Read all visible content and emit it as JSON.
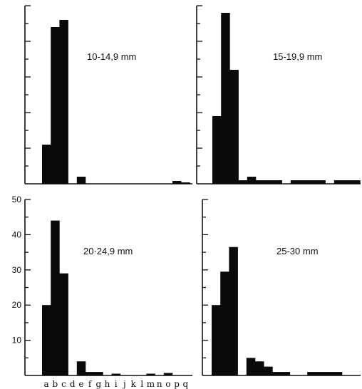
{
  "chart_data": {
    "type": "bar",
    "categories": [
      "a",
      "b",
      "c",
      "d",
      "e",
      "f",
      "g",
      "h",
      "i",
      "j",
      "k",
      "l",
      "m",
      "n",
      "o",
      "p",
      "q"
    ],
    "ylim": [
      0,
      50
    ],
    "y_ticks": [
      "10",
      "20",
      "30",
      "40",
      "50"
    ],
    "panels": [
      {
        "label": "10-14,9 mm",
        "values": [
          11,
          44,
          46,
          0,
          2,
          0,
          0,
          0,
          0,
          0,
          0,
          0,
          0,
          0,
          0,
          0.8,
          0.4
        ]
      },
      {
        "label": "15-19,9 mm",
        "values": [
          19,
          48,
          32,
          1,
          2,
          1,
          1,
          1,
          0,
          1,
          1,
          1,
          1,
          0,
          1,
          1,
          1
        ]
      },
      {
        "label": "20·24,9 mm",
        "values": [
          20,
          44,
          29,
          0,
          4,
          1,
          1,
          0,
          0.5,
          0,
          0,
          0,
          0.5,
          0,
          0.7,
          0,
          0
        ]
      },
      {
        "label": "25-30 mm",
        "values": [
          20,
          29.5,
          36.5,
          0,
          5,
          4,
          2.5,
          1,
          1,
          0,
          0,
          1,
          1,
          1,
          1,
          0,
          0
        ]
      }
    ]
  }
}
